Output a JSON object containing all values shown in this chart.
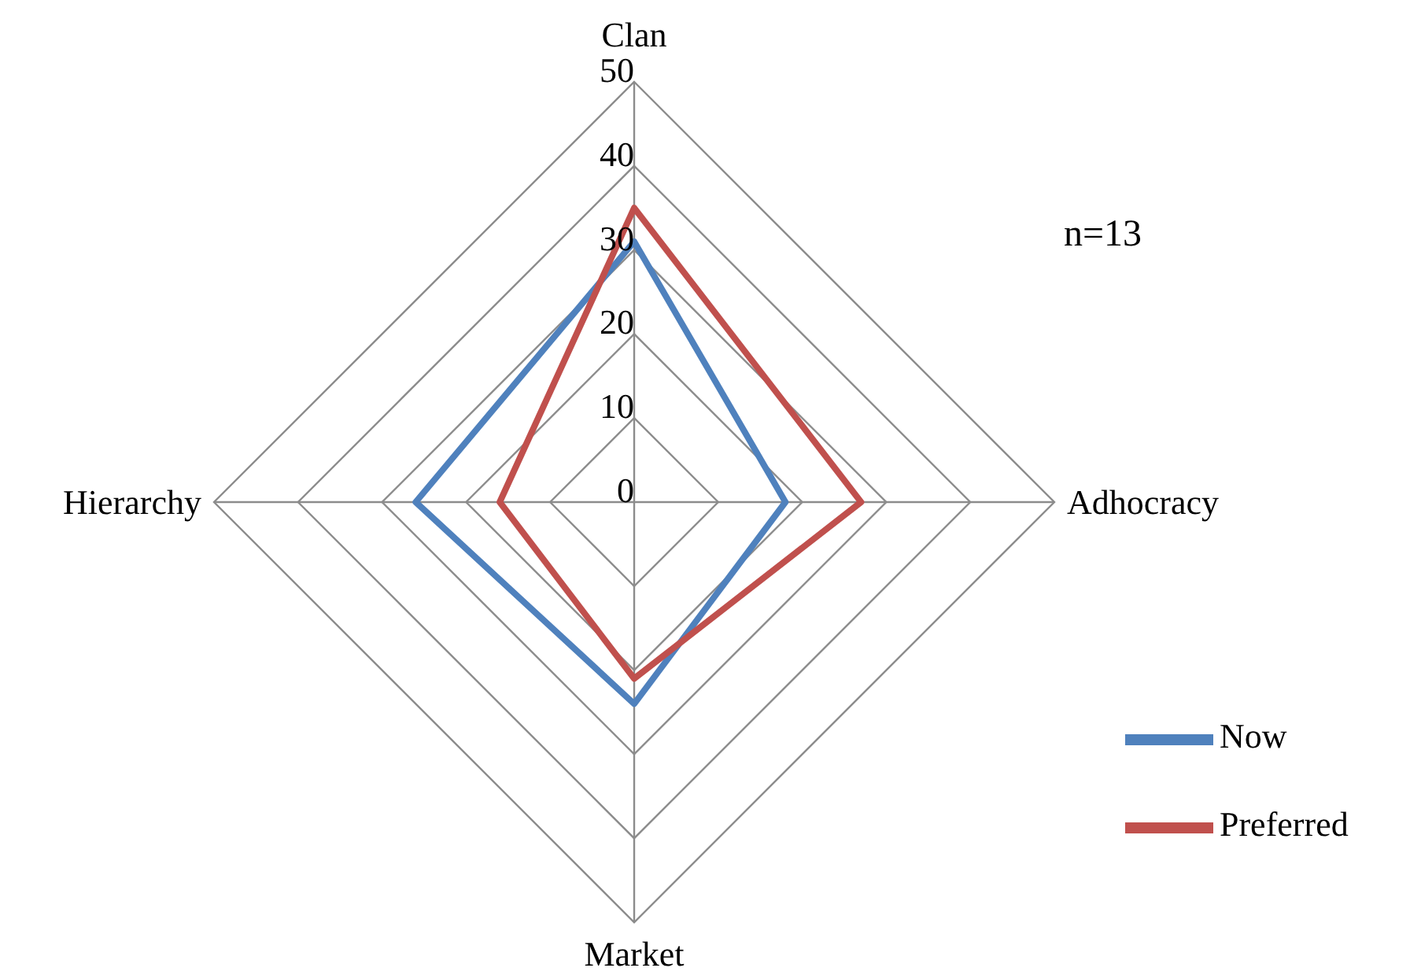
{
  "chart_data": {
    "type": "radar",
    "categories": [
      "Clan",
      "Adhocracy",
      "Market",
      "Hierarchy"
    ],
    "series": [
      {
        "name": "Now",
        "color": "#4f81bd",
        "values": [
          31,
          18,
          24,
          26
        ]
      },
      {
        "name": "Preferred",
        "color": "#c0504d",
        "values": [
          35,
          27,
          21,
          16
        ]
      }
    ],
    "ylim": [
      0,
      50
    ],
    "yticks": [
      0,
      10,
      20,
      30,
      40,
      50
    ],
    "grid": true,
    "legend": "bottom right",
    "marker": "none",
    "annotations": [
      "n=13"
    ]
  }
}
